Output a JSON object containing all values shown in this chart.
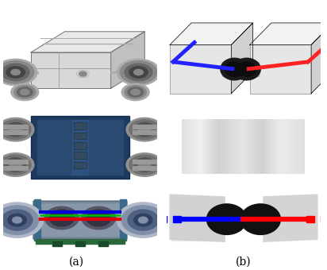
{
  "fig_width": 4.12,
  "fig_height": 3.4,
  "dpi": 100,
  "bg_color": "#ffffff",
  "label_a": "(a)",
  "label_b": "(b)",
  "label_fontsize": 10,
  "blue_color": "#0000ff",
  "red_color": "#ff0000"
}
